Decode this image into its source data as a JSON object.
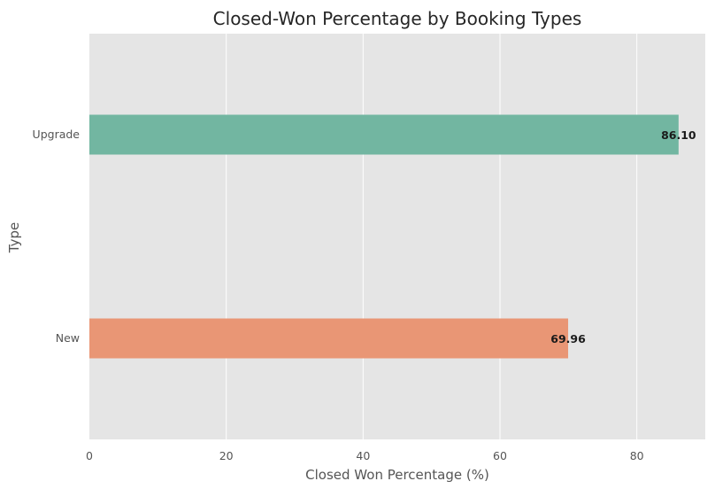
{
  "chart_data": {
    "type": "bar",
    "orientation": "horizontal",
    "title": "Closed-Won Percentage by Booking Types",
    "xlabel": "Closed Won Percentage (%)",
    "ylabel": "Type",
    "categories": [
      "New",
      "Upgrade"
    ],
    "values": [
      69.96,
      86.1
    ],
    "data_labels": [
      "69.96",
      "86.10"
    ],
    "bar_colors": [
      "#E99675",
      "#72B6A1"
    ],
    "xlim": [
      0,
      90
    ],
    "xticks": [
      0,
      20,
      40,
      60,
      80
    ],
    "xtick_labels": [
      "0",
      "20",
      "40",
      "60",
      "80"
    ],
    "grid": "vertical",
    "background_color": "#E5E5E5",
    "grid_color": "#FFFFFF",
    "legend": "none"
  }
}
